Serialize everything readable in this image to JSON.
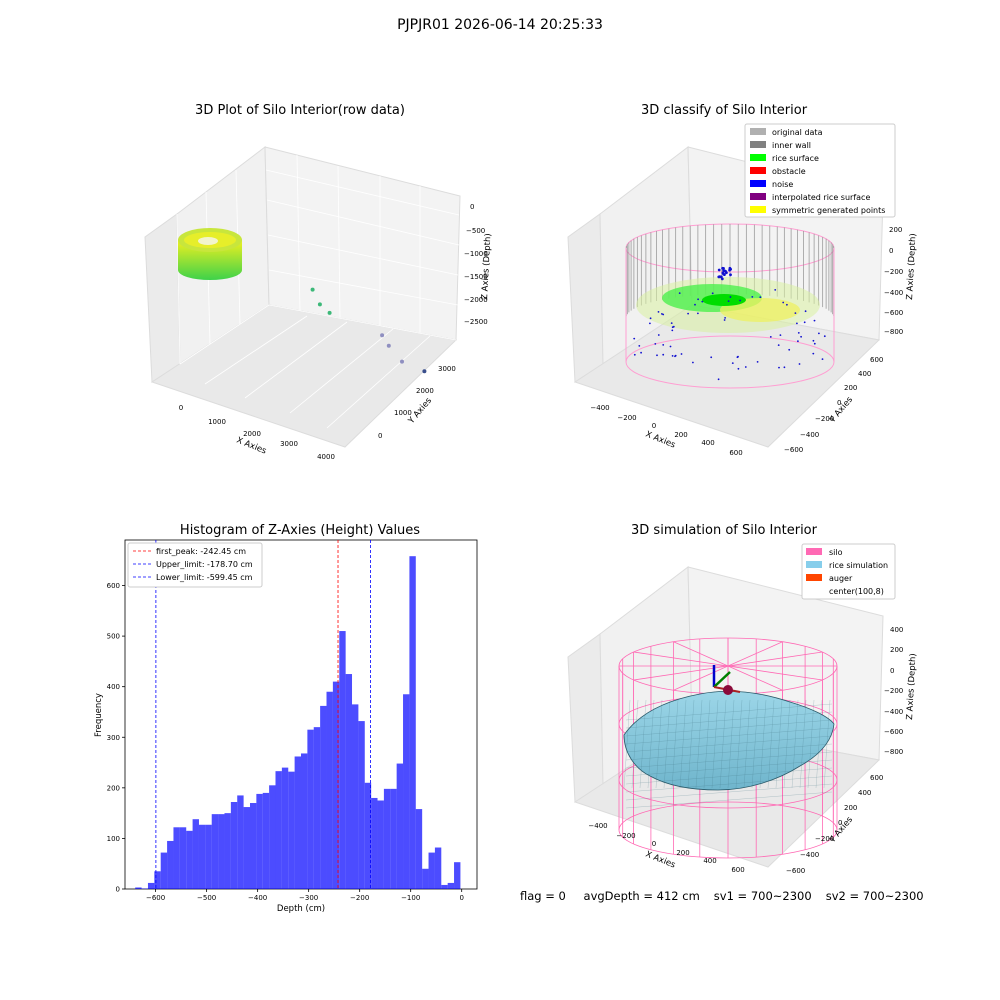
{
  "suptitle": "PJPJR01 2026-06-14 20:25:33",
  "chart_data": [
    {
      "type": "scatter",
      "title": "3D Plot of Silo Interior(row data)",
      "xlabel": "X Axies",
      "ylabel": "Y Axies",
      "zlabel": "Z Axies (Depth)",
      "x_ticks": [
        "0",
        "1000",
        "2000",
        "3000",
        "4000"
      ],
      "y_ticks": [
        "0",
        "1000",
        "2000",
        "3000"
      ],
      "z_ticks": [
        "0",
        "−500",
        "−1000",
        "−1500",
        "−2000",
        "−2500"
      ],
      "points": [
        {
          "x": 2400,
          "y": 1500,
          "z": -1100
        },
        {
          "x": 2600,
          "y": 1500,
          "z": -1300
        },
        {
          "x": 2700,
          "y": 1700,
          "z": -1500
        },
        {
          "x": 3400,
          "y": 2600,
          "z": -2000
        },
        {
          "x": 3500,
          "y": 2700,
          "z": -2200
        },
        {
          "x": 3700,
          "y": 2900,
          "z": -2500
        },
        {
          "x": 3900,
          "y": 3400,
          "z": -2800
        }
      ]
    },
    {
      "type": "scatter",
      "title": "3D classify of Silo Interior",
      "xlabel": "X Axies",
      "ylabel": "Y Axies",
      "zlabel": "Z Axies (Depth)",
      "x_ticks": [
        "−400",
        "−200",
        "0",
        "200",
        "400",
        "600"
      ],
      "y_ticks": [
        "−600",
        "−400",
        "−200",
        "0",
        "200",
        "400",
        "600"
      ],
      "z_ticks": [
        "200",
        "0",
        "−200",
        "−400",
        "−600",
        "−800"
      ],
      "legend": [
        {
          "label": "original data",
          "color": "#b0b0b0"
        },
        {
          "label": "inner wall",
          "color": "#808080"
        },
        {
          "label": "rice surface",
          "color": "#00ff00"
        },
        {
          "label": "obstacle",
          "color": "#ff0000"
        },
        {
          "label": "noise",
          "color": "#0000ff"
        },
        {
          "label": "interpolated rice surface",
          "color": "#800080"
        },
        {
          "label": "symmetric generated points",
          "color": "#ffff00"
        }
      ]
    },
    {
      "type": "bar",
      "title": "Histogram of Z-Axies (Height) Values",
      "xlabel": "Depth (cm)",
      "ylabel": "Frequency",
      "xlim": [
        -660,
        30
      ],
      "ylim": [
        0,
        690
      ],
      "x_ticks": [
        "−600",
        "−500",
        "−400",
        "−300",
        "−200",
        "−100",
        "0"
      ],
      "y_ticks": [
        "0",
        "100",
        "200",
        "300",
        "400",
        "500",
        "600"
      ],
      "bin_start": -640,
      "bin_width": 12.5,
      "values": [
        3,
        1,
        12,
        35,
        72,
        95,
        122,
        122,
        115,
        138,
        127,
        127,
        148,
        148,
        150,
        172,
        185,
        162,
        170,
        188,
        190,
        205,
        233,
        240,
        232,
        262,
        268,
        315,
        320,
        362,
        390,
        410,
        510,
        425,
        365,
        332,
        210,
        180,
        175,
        198,
        198,
        248,
        385,
        658,
        158,
        40,
        72,
        82,
        8,
        12,
        53
      ],
      "color": "#0000ff",
      "vlines": [
        {
          "label": "first_peak: -242.45 cm",
          "x": -242.45,
          "color": "#ff0000"
        },
        {
          "label": "Upper_limit: -178.70 cm",
          "x": -178.7,
          "color": "#0000ff"
        },
        {
          "label": "Lower_limit: -599.45 cm",
          "x": -599.45,
          "color": "#0000ff"
        }
      ]
    },
    {
      "type": "surface",
      "title": "3D simulation of Silo Interior",
      "xlabel": "X Axies",
      "ylabel": "Y Axies",
      "zlabel": "Z Axies (Depth)",
      "x_ticks": [
        "−400",
        "−200",
        "0",
        "200",
        "400",
        "600"
      ],
      "y_ticks": [
        "−600",
        "−400",
        "−200",
        "0",
        "200",
        "400",
        "600"
      ],
      "z_ticks": [
        "400",
        "200",
        "0",
        "−200",
        "−400",
        "−600",
        "−800"
      ],
      "legend": [
        {
          "label": "silo",
          "color": "#ff69b4"
        },
        {
          "label": "rice simulation",
          "color": "#87ceeb"
        },
        {
          "label": "auger",
          "color": "#ff4500"
        },
        {
          "label": "center(100,8)",
          "color": ""
        }
      ]
    }
  ],
  "status": {
    "flag": "flag = 0",
    "avg": "avgDepth = 412 cm",
    "sv1": "sv1 = 700~2300",
    "sv2": "sv2 = 700~2300"
  }
}
